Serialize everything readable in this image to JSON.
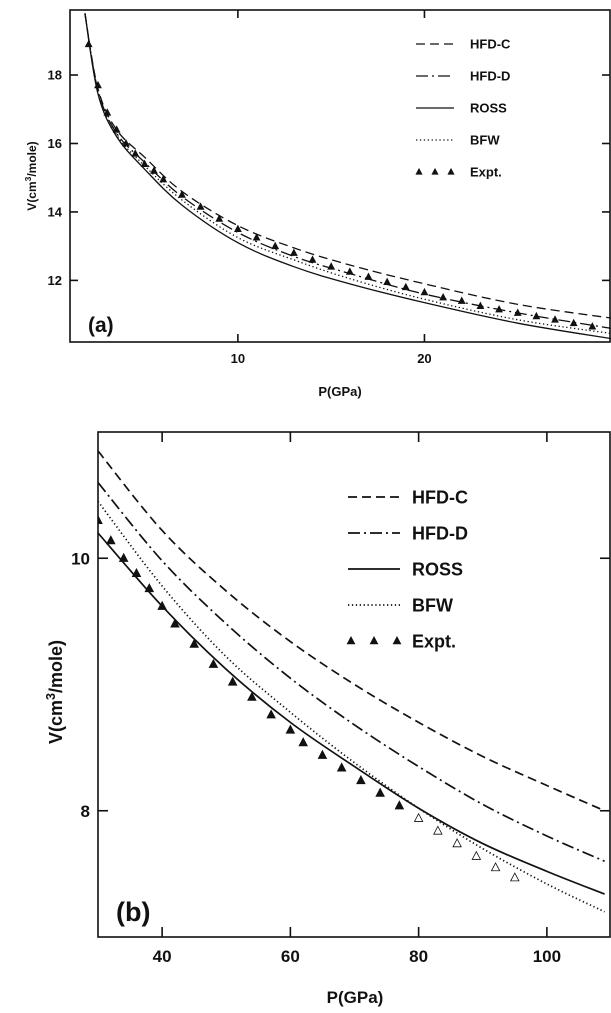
{
  "chart_data": [
    {
      "type": "line",
      "panel_label": "(a)",
      "xlabel": "P(GPa)",
      "ylabel": "V(cm3/mole)",
      "ylabel_main": "V(cm",
      "ylabel_sup": "3",
      "ylabel_tail": "/mole)",
      "xlim": [
        1,
        30
      ],
      "ylim": [
        10.2,
        19.9
      ],
      "xticks": [
        10,
        20
      ],
      "yticks": [
        12,
        14,
        16,
        18
      ],
      "legend_position": "top-right",
      "legend": [
        {
          "label": "HFD-C",
          "style": "dashed"
        },
        {
          "label": "HFD-D",
          "style": "dash-dot"
        },
        {
          "label": "ROSS",
          "style": "solid"
        },
        {
          "label": "BFW",
          "style": "dotted"
        },
        {
          "label": "Expt.",
          "style": "triangles"
        }
      ],
      "series": [
        {
          "name": "HFD-C",
          "style": "dashed",
          "x": [
            1.8,
            2.5,
            3.5,
            5,
            7,
            10,
            13,
            16,
            20,
            25,
            30
          ],
          "y": [
            19.8,
            17.6,
            16.4,
            15.6,
            14.6,
            13.6,
            12.95,
            12.45,
            11.9,
            11.3,
            10.9
          ]
        },
        {
          "name": "HFD-D",
          "style": "dash-dot",
          "x": [
            1.8,
            2.5,
            3.5,
            5,
            7,
            10,
            13,
            16,
            20,
            25,
            30
          ],
          "y": [
            19.8,
            17.55,
            16.3,
            15.45,
            14.45,
            13.4,
            12.7,
            12.2,
            11.6,
            11.05,
            10.6
          ]
        },
        {
          "name": "ROSS",
          "style": "solid",
          "x": [
            1.8,
            2.5,
            3.5,
            5,
            7,
            10,
            13,
            16,
            20,
            25,
            30
          ],
          "y": [
            19.8,
            17.45,
            16.2,
            15.25,
            14.2,
            13.1,
            12.4,
            11.9,
            11.35,
            10.75,
            10.3
          ]
        },
        {
          "name": "BFW",
          "style": "dotted",
          "x": [
            1.8,
            2.5,
            3.5,
            5,
            7,
            10,
            13,
            16,
            20,
            25,
            30
          ],
          "y": [
            19.8,
            17.5,
            16.25,
            15.35,
            14.35,
            13.25,
            12.6,
            12.05,
            11.45,
            10.85,
            10.45
          ]
        },
        {
          "name": "Expt.",
          "style": "triangles",
          "x": [
            2,
            2.5,
            3,
            3.5,
            4,
            4.5,
            5,
            5.5,
            6,
            7,
            8,
            9,
            10,
            11,
            12,
            13,
            14,
            15,
            16,
            17,
            18,
            19,
            20,
            21,
            22,
            23,
            24,
            25,
            26,
            27,
            28,
            29
          ],
          "y": [
            18.9,
            17.7,
            16.9,
            16.4,
            16.0,
            15.7,
            15.4,
            15.2,
            14.95,
            14.5,
            14.15,
            13.8,
            13.5,
            13.25,
            13.0,
            12.8,
            12.6,
            12.4,
            12.25,
            12.1,
            11.95,
            11.8,
            11.65,
            11.5,
            11.4,
            11.25,
            11.15,
            11.05,
            10.95,
            10.85,
            10.75,
            10.65
          ]
        }
      ]
    },
    {
      "type": "line",
      "panel_label": "(b)",
      "xlabel": "P(GPa)",
      "ylabel": "V(cm3/mole)",
      "ylabel_main": "V(cm",
      "ylabel_sup": "3",
      "ylabel_tail": "/mole)",
      "xlim": [
        30,
        110
      ],
      "ylim": [
        7.0,
        11.0
      ],
      "xticks": [
        40,
        60,
        80,
        100
      ],
      "yticks": [
        8,
        10
      ],
      "legend_position": "top-right",
      "legend": [
        {
          "label": "HFD-C",
          "style": "dashed"
        },
        {
          "label": "HFD-D",
          "style": "dash-dot"
        },
        {
          "label": "ROSS",
          "style": "solid"
        },
        {
          "label": "BFW",
          "style": "dotted"
        },
        {
          "label": "Expt.",
          "style": "triangles"
        }
      ],
      "series": [
        {
          "name": "HFD-C",
          "style": "dashed",
          "x": [
            30,
            40,
            50,
            60,
            70,
            80,
            90,
            100,
            109
          ],
          "y": [
            10.85,
            10.22,
            9.74,
            9.34,
            9.0,
            8.7,
            8.43,
            8.2,
            8.0
          ]
        },
        {
          "name": "HFD-D",
          "style": "dash-dot",
          "x": [
            30,
            40,
            50,
            60,
            70,
            80,
            90,
            100,
            109
          ],
          "y": [
            10.6,
            9.98,
            9.48,
            9.05,
            8.68,
            8.35,
            8.05,
            7.8,
            7.6
          ]
        },
        {
          "name": "ROSS",
          "style": "solid",
          "x": [
            30,
            40,
            50,
            60,
            70,
            80,
            90,
            100,
            109
          ],
          "y": [
            10.2,
            9.62,
            9.12,
            8.7,
            8.35,
            8.02,
            7.74,
            7.52,
            7.34
          ]
        },
        {
          "name": "BFW",
          "style": "dotted",
          "x": [
            30,
            40,
            50,
            60,
            70,
            80,
            90,
            100,
            109
          ],
          "y": [
            10.45,
            9.78,
            9.22,
            8.78,
            8.38,
            8.02,
            7.7,
            7.42,
            7.2
          ]
        },
        {
          "name": "Expt.",
          "style": "triangles",
          "x": [
            30,
            32,
            34,
            36,
            38,
            40,
            42,
            45,
            48,
            51,
            54,
            57,
            60,
            62,
            65,
            68,
            71,
            74,
            77,
            80,
            83,
            86,
            89,
            92,
            95
          ],
          "y": [
            10.3,
            10.14,
            10.0,
            9.88,
            9.76,
            9.62,
            9.48,
            9.32,
            9.16,
            9.02,
            8.9,
            8.76,
            8.64,
            8.54,
            8.44,
            8.34,
            8.24,
            8.14,
            8.04,
            7.94,
            7.84,
            7.74,
            7.64,
            7.55,
            7.47
          ]
        }
      ]
    }
  ]
}
